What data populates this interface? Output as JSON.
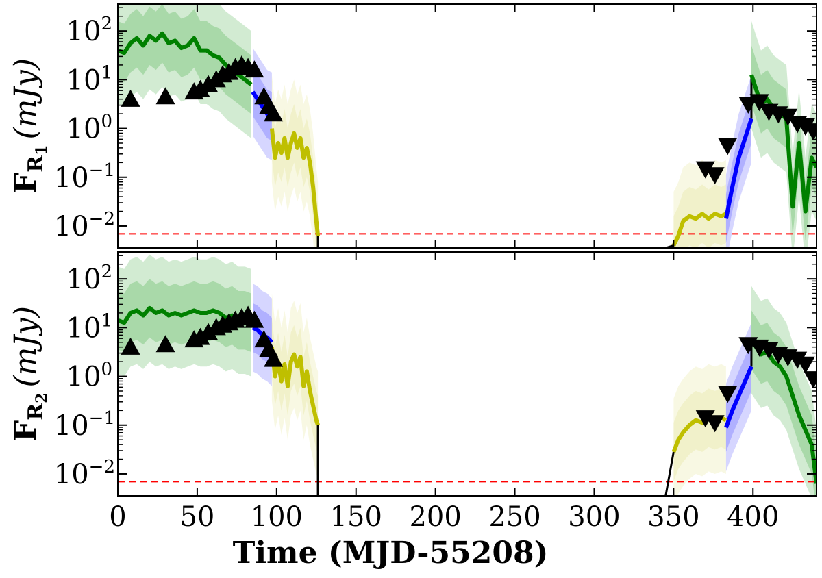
{
  "chart_data": [
    {
      "type": "line",
      "panel": "top",
      "ylabel": {
        "symbol": "F",
        "sub": "R",
        "subsub": "1",
        "units": "(mJy)"
      },
      "yscale": "log",
      "xlim": [
        0,
        440
      ],
      "ylim_log10": [
        -2.45,
        2.55
      ],
      "yticks": [
        {
          "log": 2,
          "label": "10",
          "exp": "2"
        },
        {
          "log": 1,
          "label": "10",
          "exp": "1"
        },
        {
          "log": 0,
          "label": "10",
          "exp": "0"
        },
        {
          "log": -1,
          "label": "10",
          "exp": "−1"
        },
        {
          "log": -2,
          "label": "10",
          "exp": "−2"
        }
      ],
      "threshold_log": -2.16,
      "series": [
        {
          "color": "#008000",
          "x": [
            0,
            4,
            8,
            12,
            16,
            20,
            24,
            28,
            32,
            36,
            40,
            44,
            48,
            52,
            56,
            60,
            64,
            68,
            72,
            76,
            80,
            84
          ],
          "y": [
            1.6,
            1.55,
            1.75,
            1.85,
            1.7,
            1.9,
            1.8,
            1.95,
            1.75,
            1.8,
            1.65,
            1.7,
            1.85,
            1.6,
            1.6,
            1.5,
            1.45,
            1.3,
            1.2,
            1.1,
            1.0,
            0.9
          ]
        },
        {
          "color": "#0000ff",
          "x": [
            85,
            88,
            91,
            94,
            97
          ],
          "y": [
            0.75,
            0.6,
            0.45,
            0.3,
            0.25
          ]
        },
        {
          "color": "#bfbf00",
          "x": [
            97,
            99,
            101,
            103,
            105,
            107,
            109,
            111,
            113,
            115,
            117,
            119,
            121,
            123,
            125,
            126
          ],
          "y": [
            0.0,
            -0.6,
            -0.3,
            -0.5,
            -0.2,
            -0.6,
            -0.3,
            -0.1,
            -0.4,
            -0.2,
            -0.6,
            -0.4,
            -0.7,
            -1.2,
            -1.9,
            -2.2
          ]
        },
        {
          "color": "#bfbf00",
          "x": [
            350,
            353,
            356,
            360,
            364,
            368,
            372,
            376,
            380,
            383
          ],
          "y": [
            -2.4,
            -2.2,
            -1.9,
            -1.8,
            -1.85,
            -1.75,
            -1.85,
            -1.75,
            -1.8,
            -1.75
          ]
        },
        {
          "color": "#0000ff",
          "x": [
            383,
            387,
            391,
            395,
            399
          ],
          "y": [
            -1.85,
            -1.2,
            -0.6,
            -0.2,
            0.2
          ]
        },
        {
          "color": "#008000",
          "x": [
            399,
            402,
            405,
            409,
            413,
            417,
            421,
            425,
            429,
            433,
            437,
            440
          ],
          "y": [
            1.1,
            0.8,
            0.5,
            0.6,
            0.4,
            0.3,
            0.2,
            -1.6,
            -0.3,
            -1.7,
            -0.6,
            -0.8
          ]
        }
      ],
      "markers_up": [
        [
          8,
          0.6
        ],
        [
          30,
          0.65
        ],
        [
          48,
          0.75
        ],
        [
          52,
          0.8
        ],
        [
          57,
          0.9
        ],
        [
          62,
          1.0
        ],
        [
          66,
          1.1
        ],
        [
          70,
          1.15
        ],
        [
          74,
          1.25
        ],
        [
          78,
          1.3
        ],
        [
          82,
          1.25
        ],
        [
          86,
          1.2
        ],
        [
          92,
          0.65
        ],
        [
          95,
          0.45
        ],
        [
          98,
          0.3
        ]
      ],
      "markers_down": [
        [
          370,
          -0.83
        ],
        [
          376,
          -0.95
        ],
        [
          384,
          -0.35
        ],
        [
          397,
          0.5
        ],
        [
          404,
          0.55
        ],
        [
          410,
          0.35
        ],
        [
          416,
          0.3
        ],
        [
          422,
          0.25
        ],
        [
          428,
          0.1
        ],
        [
          433,
          0.05
        ],
        [
          438,
          -0.05
        ]
      ]
    },
    {
      "type": "line",
      "panel": "bottom",
      "ylabel": {
        "symbol": "F",
        "sub": "R",
        "subsub": "2",
        "units": "(mJy)"
      },
      "yscale": "log",
      "xlim": [
        0,
        440
      ],
      "ylim_log10": [
        -2.45,
        2.55
      ],
      "yticks": [
        {
          "log": 2,
          "label": "10",
          "exp": "2"
        },
        {
          "log": 1,
          "label": "10",
          "exp": "1"
        },
        {
          "log": 0,
          "label": "10",
          "exp": "0"
        },
        {
          "log": -1,
          "label": "10",
          "exp": "−1"
        },
        {
          "log": -2,
          "label": "10",
          "exp": "−2"
        }
      ],
      "threshold_log": -2.16,
      "series": [
        {
          "color": "#008000",
          "x": [
            0,
            4,
            8,
            12,
            16,
            20,
            24,
            28,
            32,
            36,
            40,
            44,
            48,
            52,
            56,
            60,
            64,
            68,
            72,
            76,
            80,
            84
          ],
          "y": [
            1.15,
            1.1,
            1.3,
            1.35,
            1.25,
            1.4,
            1.3,
            1.35,
            1.25,
            1.3,
            1.25,
            1.3,
            1.35,
            1.3,
            1.3,
            1.35,
            1.3,
            1.2,
            1.25,
            1.15,
            1.15,
            1.1
          ]
        },
        {
          "color": "#0000ff",
          "x": [
            85,
            88,
            91,
            94,
            97
          ],
          "y": [
            1.0,
            0.95,
            0.85,
            0.8,
            0.7
          ]
        },
        {
          "color": "#bfbf00",
          "x": [
            97,
            99,
            101,
            103,
            105,
            107,
            109,
            111,
            113,
            115,
            117,
            119,
            121,
            123,
            125,
            126
          ],
          "y": [
            0.6,
            0.0,
            0.3,
            -0.1,
            0.25,
            -0.2,
            0.3,
            0.45,
            0.2,
            0.4,
            -0.2,
            0.1,
            -0.3,
            -0.6,
            -0.9,
            -1.0
          ]
        },
        {
          "color": "#bfbf00",
          "x": [
            350,
            353,
            356,
            360,
            364,
            368,
            372,
            376,
            380,
            383
          ],
          "y": [
            -1.55,
            -1.3,
            -1.15,
            -1.0,
            -0.9,
            -0.95,
            -0.85,
            -0.9,
            -0.85,
            -0.9
          ]
        },
        {
          "color": "#0000ff",
          "x": [
            383,
            387,
            391,
            395,
            399
          ],
          "y": [
            -1.05,
            -0.7,
            -0.4,
            -0.1,
            0.2
          ]
        },
        {
          "color": "#008000",
          "x": [
            399,
            402,
            405,
            409,
            413,
            417,
            421,
            425,
            429,
            433,
            437,
            440
          ],
          "y": [
            0.75,
            0.6,
            0.45,
            0.5,
            0.3,
            0.2,
            0.0,
            -0.4,
            -0.8,
            -1.1,
            -1.4,
            -2.2
          ]
        }
      ],
      "markers_up": [
        [
          8,
          0.6
        ],
        [
          30,
          0.65
        ],
        [
          48,
          0.75
        ],
        [
          52,
          0.8
        ],
        [
          57,
          0.9
        ],
        [
          62,
          1.0
        ],
        [
          66,
          1.05
        ],
        [
          70,
          1.1
        ],
        [
          74,
          1.15
        ],
        [
          78,
          1.2
        ],
        [
          82,
          1.25
        ],
        [
          86,
          1.15
        ],
        [
          92,
          0.75
        ],
        [
          95,
          0.55
        ],
        [
          98,
          0.35
        ]
      ],
      "markers_down": [
        [
          370,
          -0.85
        ],
        [
          376,
          -0.95
        ],
        [
          384,
          -0.35
        ],
        [
          397,
          0.65
        ],
        [
          404,
          0.6
        ],
        [
          410,
          0.55
        ],
        [
          416,
          0.45
        ],
        [
          422,
          0.4
        ],
        [
          428,
          0.35
        ],
        [
          433,
          0.25
        ],
        [
          438,
          -0.05
        ]
      ]
    }
  ],
  "xaxis": {
    "label": "Time (MJD-55208)",
    "ticks": [
      "0",
      "50",
      "100",
      "150",
      "200",
      "250",
      "300",
      "350",
      "400"
    ],
    "tick_values": [
      0,
      50,
      100,
      150,
      200,
      250,
      300,
      350,
      400
    ]
  },
  "colors": {
    "green": "#008000",
    "blue": "#0000ff",
    "yellow": "#bfbf00",
    "threshold": "#ff0000",
    "band_green": "#5fb85f",
    "band_blue": "#6a6aff"
  }
}
